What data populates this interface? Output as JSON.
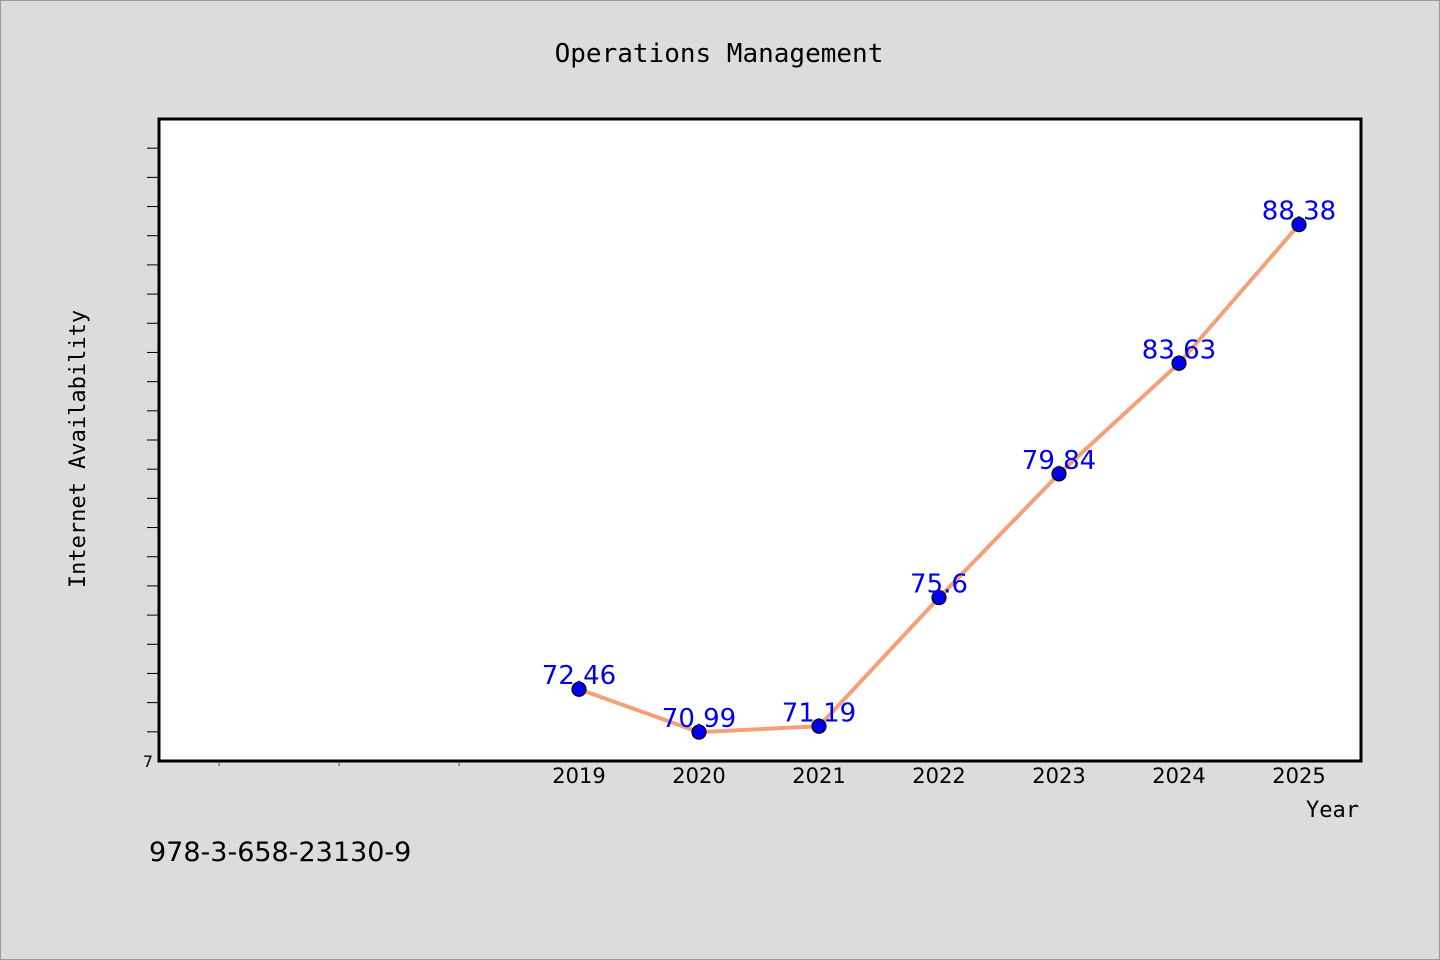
{
  "chart_data": {
    "type": "line",
    "title": "Operations Management",
    "xlabel": "Year",
    "ylabel": "Internet Availability",
    "x": [
      "2019",
      "2020",
      "2021",
      "2022",
      "2023",
      "2024",
      "2025"
    ],
    "series": [
      {
        "values": [
          72.46,
          70.99,
          71.19,
          75.6,
          79.84,
          83.63,
          88.38
        ]
      }
    ],
    "y_tick_label": "7",
    "y_min_tick_value": 70,
    "ylim": [
      70,
      92
    ],
    "grid": false,
    "legend": "none",
    "line_color": "#f4a07a",
    "marker_color": "#0000ee",
    "label_color": "#0000ee"
  },
  "footer_text": "978-3-658-23130-9",
  "colors": {
    "background": "#dcdcdc",
    "plot_background": "#ffffff",
    "axis": "#000000"
  }
}
